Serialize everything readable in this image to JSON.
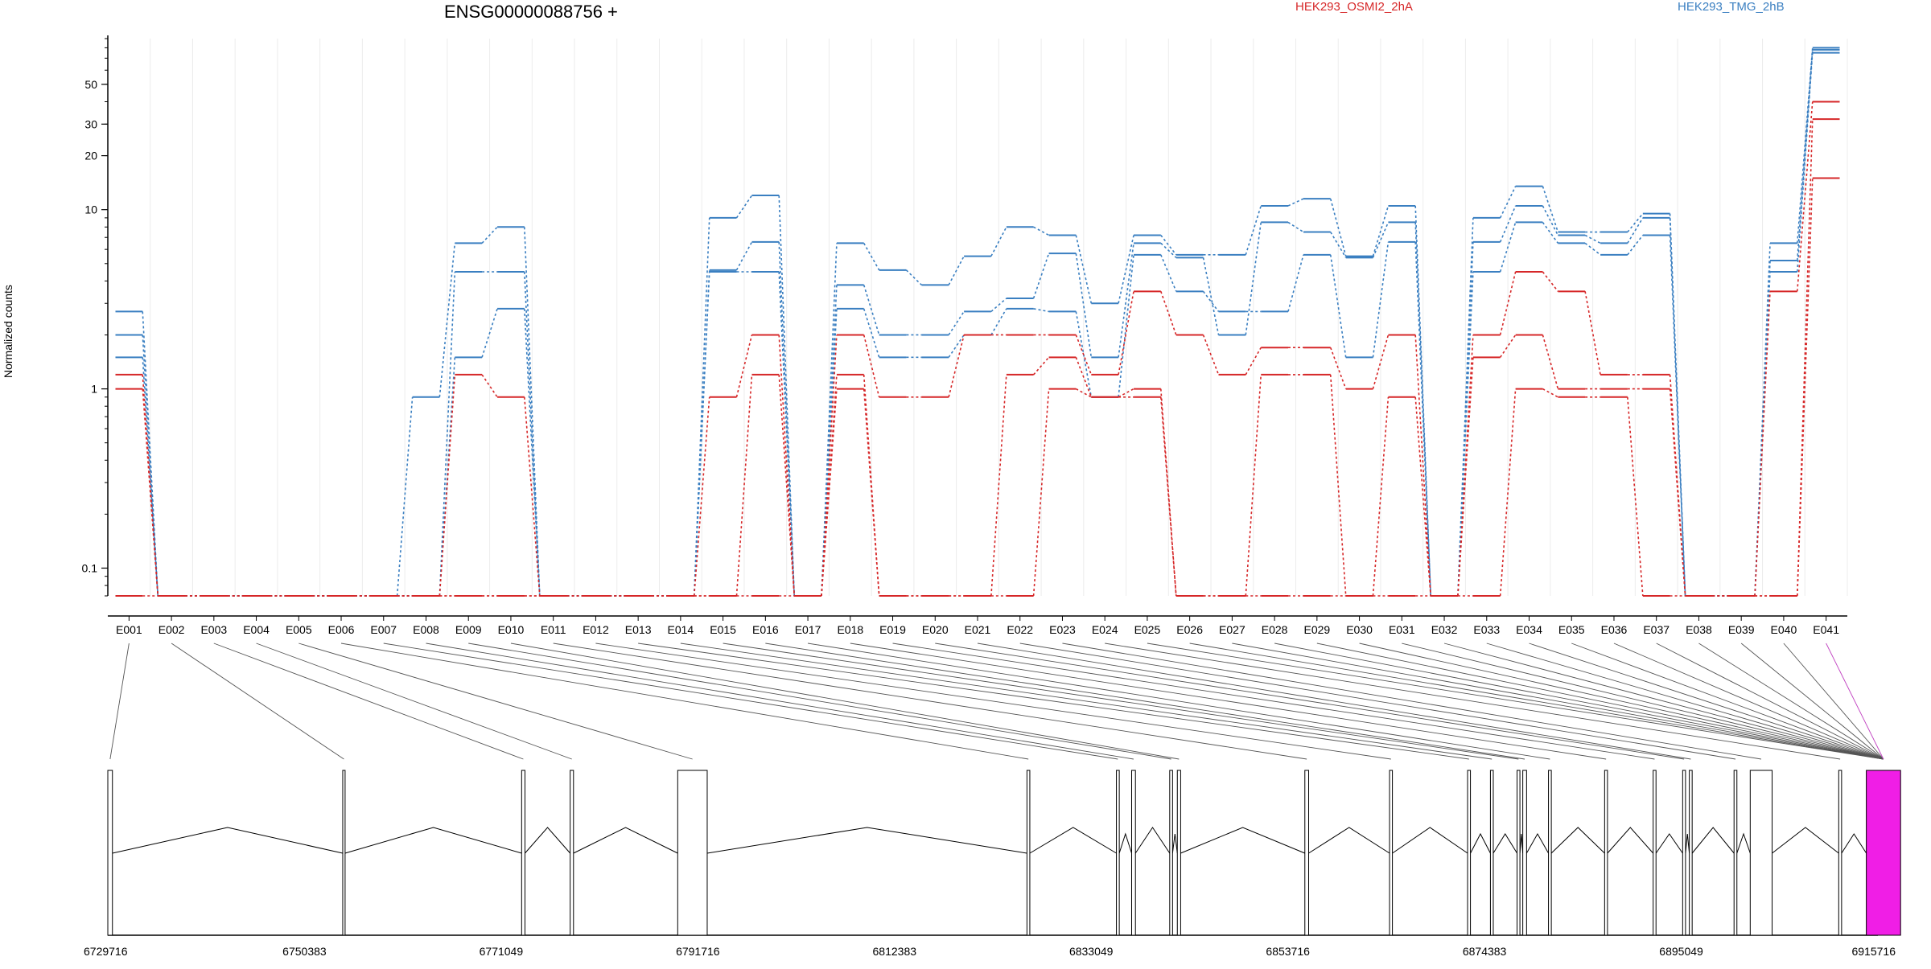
{
  "chart_data": {
    "type": "line",
    "title": "ENSG00000088756 +",
    "ylabel": "Normalized counts",
    "yscale": "log",
    "ylim": [
      0.07,
      90
    ],
    "yticks": [
      0.1,
      1,
      10,
      20,
      30,
      50
    ],
    "ytick_labels": [
      "0.1",
      "1",
      "10",
      "20",
      "30",
      "50"
    ],
    "categories": [
      "E001",
      "E002",
      "E003",
      "E004",
      "E005",
      "E006",
      "E007",
      "E008",
      "E009",
      "E010",
      "E011",
      "E012",
      "E013",
      "E014",
      "E015",
      "E016",
      "E017",
      "E018",
      "E019",
      "E020",
      "E021",
      "E022",
      "E023",
      "E024",
      "E025",
      "E026",
      "E027",
      "E028",
      "E029",
      "E030",
      "E031",
      "E032",
      "E033",
      "E034",
      "E035",
      "E036",
      "E037",
      "E038",
      "E039",
      "E040",
      "E041"
    ],
    "legend": [
      {
        "label": "HEK293_OSMI2_2hA",
        "color": "#d62728"
      },
      {
        "label": "HEK293_TMG_2hB",
        "color": "#3a7fc1"
      }
    ],
    "series": [
      {
        "group": "HEK293_TMG_2hB",
        "color": "#3a7fc1",
        "values": [
          2.7,
          0,
          0,
          0,
          0,
          0,
          0,
          0.9,
          6.5,
          8.0,
          0,
          0,
          0,
          0,
          9.0,
          12.0,
          0,
          6.5,
          4.6,
          3.8,
          5.5,
          8.0,
          7.2,
          3.0,
          7.2,
          5.6,
          5.6,
          10.5,
          11.5,
          5.5,
          10.5,
          0,
          9.0,
          13.5,
          7.5,
          7.5,
          9.5,
          0,
          0,
          6.5,
          80
        ]
      },
      {
        "group": "HEK293_TMG_2hB",
        "color": "#3a7fc1",
        "values": [
          2.0,
          0,
          0,
          0,
          0,
          0,
          0,
          0,
          4.5,
          4.5,
          0,
          0,
          0,
          0,
          4.6,
          6.6,
          0,
          3.8,
          2.0,
          2.0,
          2.7,
          3.2,
          5.7,
          1.5,
          6.5,
          5.4,
          2.0,
          8.5,
          7.5,
          5.4,
          8.5,
          0,
          6.6,
          10.5,
          7.2,
          6.5,
          9.0,
          0,
          0,
          5.2,
          78
        ]
      },
      {
        "group": "HEK293_TMG_2hB",
        "color": "#3a7fc1",
        "values": [
          1.5,
          0,
          0,
          0,
          0,
          0,
          0,
          0,
          1.5,
          2.8,
          0,
          0,
          0,
          0,
          4.5,
          4.5,
          0,
          2.8,
          1.5,
          1.5,
          2.0,
          2.8,
          2.7,
          0.9,
          5.6,
          3.5,
          2.7,
          2.7,
          5.6,
          1.5,
          6.6,
          0,
          4.5,
          8.5,
          6.5,
          5.6,
          7.2,
          0,
          0,
          4.5,
          75
        ]
      },
      {
        "group": "HEK293_OSMI2_2hA",
        "color": "#d62728",
        "values": [
          1.2,
          0,
          0,
          0,
          0,
          0,
          0,
          0,
          1.2,
          0.9,
          0,
          0,
          0,
          0,
          0.9,
          2.0,
          0,
          2.0,
          0.9,
          0.9,
          2.0,
          2.0,
          2.0,
          1.2,
          3.5,
          2.0,
          1.2,
          1.7,
          1.7,
          1.0,
          2.0,
          0,
          2.0,
          4.5,
          3.5,
          1.2,
          1.2,
          0,
          0,
          3.5,
          40
        ]
      },
      {
        "group": "HEK293_OSMI2_2hA",
        "color": "#d62728",
        "values": [
          1.0,
          0,
          0,
          0,
          0,
          0,
          0,
          0,
          0,
          0,
          0,
          0,
          0,
          0,
          0,
          1.2,
          0,
          1.2,
          0,
          0,
          0,
          1.2,
          1.5,
          0.9,
          1.0,
          0,
          0,
          1.2,
          1.2,
          0,
          0.9,
          0,
          1.5,
          2.0,
          1.0,
          1.0,
          1.0,
          0,
          0,
          0,
          32
        ]
      },
      {
        "group": "HEK293_OSMI2_2hA",
        "color": "#d62728",
        "values": [
          0,
          0,
          0,
          0,
          0,
          0,
          0,
          0,
          0,
          0,
          0,
          0,
          0,
          0,
          0,
          0,
          0,
          1.0,
          0,
          0,
          0,
          0,
          1.0,
          0.9,
          0.9,
          0,
          0,
          0,
          0,
          0,
          0,
          0,
          0,
          1.0,
          0.9,
          0.9,
          0,
          0,
          0,
          0,
          15
        ]
      }
    ],
    "gene_axis": {
      "tick_labels": [
        "6729716",
        "6750383",
        "6771049",
        "6791716",
        "6812383",
        "6833049",
        "6853716",
        "6874383",
        "6895049",
        "6915716"
      ],
      "range": [
        6729716,
        6915716
      ]
    },
    "exons": [
      [
        6729716,
        6730200
      ],
      [
        6754400,
        6754650
      ],
      [
        6773200,
        6773550
      ],
      [
        6778300,
        6778650
      ],
      [
        6789600,
        6792700
      ],
      [
        6826300,
        6826600
      ],
      [
        6835700,
        6836000
      ],
      [
        6837300,
        6837700
      ],
      [
        6841300,
        6841600
      ],
      [
        6842100,
        6842450
      ],
      [
        6855500,
        6855900
      ],
      [
        6864400,
        6864700
      ],
      [
        6872600,
        6872900
      ],
      [
        6875000,
        6875300
      ],
      [
        6877800,
        6878100
      ],
      [
        6878400,
        6878800
      ],
      [
        6881100,
        6881400
      ],
      [
        6887000,
        6887300
      ],
      [
        6892100,
        6892400
      ],
      [
        6895200,
        6895500
      ],
      [
        6895900,
        6896200
      ],
      [
        6900600,
        6900900
      ],
      [
        6902300,
        6904600
      ],
      [
        6911600,
        6911900
      ],
      [
        6914500,
        6918100
      ]
    ]
  }
}
